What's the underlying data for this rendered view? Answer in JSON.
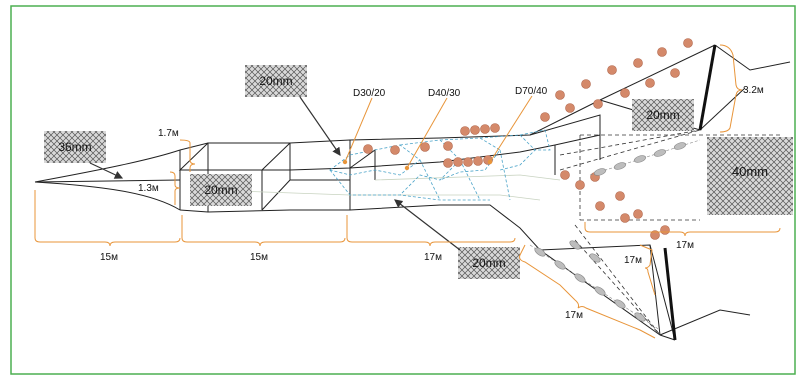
{
  "colors": {
    "frame": "#4caf50",
    "net": "#222222",
    "dimension": "#e8953a",
    "inner_mesh": "#4aa3c8",
    "float": "#d4896a",
    "mesh_fill": "#c8c8c8"
  },
  "mesh_labels": {
    "wing_mesh": "36mm",
    "upper_mesh": "20mm",
    "left_mesh": "20mm",
    "lower_mesh": "20mm",
    "right_top_mesh": "20mm",
    "right_big_mesh": "40mm"
  },
  "codes": {
    "d30": "D30/20",
    "d40": "D40/30",
    "d70": "D70/40"
  },
  "dimensions": {
    "h_top": "1.7м",
    "h_mouth": "1.3м",
    "h_end": "3.2м",
    "seg1": "15м",
    "seg2": "15м",
    "seg3": "17м",
    "seg_right": "17м",
    "seg_lower_mid": "17м",
    "seg_lower": "17м"
  }
}
